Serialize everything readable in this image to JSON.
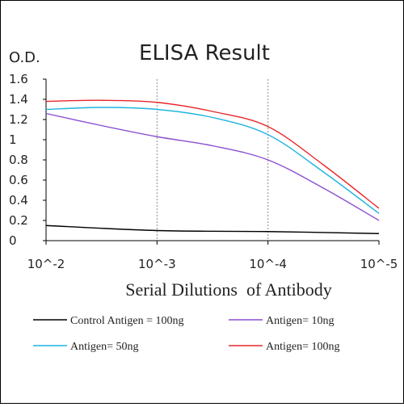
{
  "chart_data": {
    "type": "line",
    "title": "ELISA Result",
    "ylabel": "O.D.",
    "xlabel": "Serial Dilutions  of Antibody",
    "categories": [
      "10^-2",
      "10^-3",
      "10^-4",
      "10^-5"
    ],
    "y_ticks": [
      "0",
      "0.2",
      "0.4",
      "0.6",
      "0.8",
      "1",
      "1.2",
      "1.4",
      "1.6"
    ],
    "ylim": [
      0,
      1.6
    ],
    "grid": "vertical",
    "legend_position": "bottom",
    "series": [
      {
        "name": "Control Antigen = 100ng",
        "color": "#000000",
        "points": [
          [
            0,
            0.15
          ],
          [
            1,
            0.1
          ],
          [
            2,
            0.09
          ],
          [
            3,
            0.07
          ]
        ]
      },
      {
        "name": "Antigen= 10ng",
        "color": "#8a4fd0",
        "points": [
          [
            0,
            1.26
          ],
          [
            0.5,
            1.14
          ],
          [
            1,
            1.03
          ],
          [
            1.5,
            0.94
          ],
          [
            2,
            0.8
          ],
          [
            2.5,
            0.52
          ],
          [
            3,
            0.2
          ]
        ]
      },
      {
        "name": "Antigen= 50ng",
        "color": "#1fb4e0",
        "points": [
          [
            0,
            1.3
          ],
          [
            0.5,
            1.32
          ],
          [
            1,
            1.3
          ],
          [
            1.5,
            1.22
          ],
          [
            2,
            1.05
          ],
          [
            2.5,
            0.68
          ],
          [
            3,
            0.27
          ]
        ]
      },
      {
        "name": "Antigen= 100ng",
        "color": "#e8282b",
        "points": [
          [
            0,
            1.38
          ],
          [
            0.5,
            1.39
          ],
          [
            1,
            1.37
          ],
          [
            1.5,
            1.28
          ],
          [
            2,
            1.13
          ],
          [
            2.5,
            0.75
          ],
          [
            3,
            0.32
          ]
        ]
      }
    ]
  }
}
